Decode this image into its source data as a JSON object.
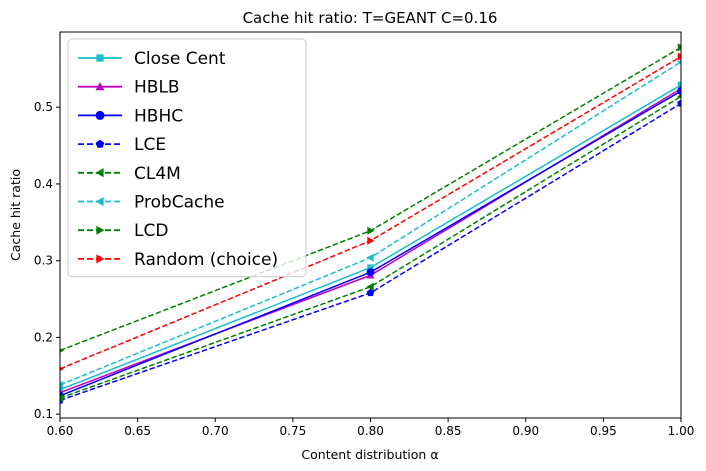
{
  "chart_data": {
    "type": "line",
    "title": "Cache hit ratio: T=GEANT C=0.16",
    "xlabel": "Content distribution α",
    "ylabel": "Cache hit ratio",
    "xlim": [
      0.6,
      1.0
    ],
    "ylim": [
      0.095,
      0.598
    ],
    "x_ticks": [
      0.6,
      0.65,
      0.7,
      0.75,
      0.8,
      0.85,
      0.9,
      0.95,
      1.0
    ],
    "y_ticks": [
      0.1,
      0.2,
      0.3,
      0.4,
      0.5
    ],
    "grid": false,
    "legend_position": "top-left",
    "x": [
      0.6,
      0.8,
      1.0
    ],
    "series": [
      {
        "name": "Close Cent",
        "values": [
          0.132,
          0.291,
          0.529
        ],
        "color": "#17becf",
        "dash": "solid",
        "marker": "square"
      },
      {
        "name": "HBLB",
        "values": [
          0.128,
          0.281,
          0.524
        ],
        "color": "#bf00bf",
        "dash": "solid",
        "marker": "triangle-up"
      },
      {
        "name": "HBHC",
        "values": [
          0.124,
          0.285,
          0.521
        ],
        "color": "#0000ff",
        "dash": "solid",
        "marker": "circle"
      },
      {
        "name": "LCE",
        "values": [
          0.118,
          0.258,
          0.505
        ],
        "color": "#0000ff",
        "dash": "dashed",
        "marker": "pentagon"
      },
      {
        "name": "CL4M",
        "values": [
          0.121,
          0.266,
          0.514
        ],
        "color": "#008000",
        "dash": "dashed",
        "marker": "triangle-left"
      },
      {
        "name": "ProbCache",
        "values": [
          0.138,
          0.304,
          0.559
        ],
        "color": "#17becf",
        "dash": "dashed",
        "marker": "triangle-left"
      },
      {
        "name": "LCD",
        "values": [
          0.183,
          0.339,
          0.578
        ],
        "color": "#008000",
        "dash": "dashed",
        "marker": "triangle-right"
      },
      {
        "name": "Random (choice)",
        "values": [
          0.159,
          0.326,
          0.566
        ],
        "color": "#ff0000",
        "dash": "dashed",
        "marker": "triangle-right"
      }
    ]
  }
}
